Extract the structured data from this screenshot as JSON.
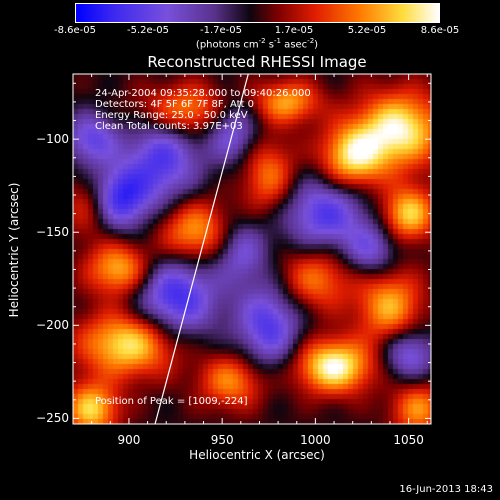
{
  "colorbar": {
    "tick_labels": [
      "-8.6e-05",
      "-5.2e-05",
      "-1.7e-05",
      "1.7e-05",
      "5.2e-05",
      "8.6e-05"
    ],
    "tick_values": [
      -8.6e-05,
      -5.2e-05,
      -1.7e-05,
      1.7e-05,
      5.2e-05,
      8.6e-05
    ],
    "range": [
      -8.6e-05,
      8.6e-05
    ],
    "units_main": "(photons cm",
    "units_exp1": "-2",
    "units_mid": " s",
    "units_exp2": "-1",
    "units_end": " asec",
    "units_exp3": "-2",
    "units_close": ")"
  },
  "chart_data": {
    "type": "heatmap",
    "title": "Reconstructed RHESSI Image",
    "xlabel": "Heliocentric X (arcsec)",
    "ylabel": "Heliocentric Y (arcsec)",
    "xlim": [
      870,
      1062
    ],
    "ylim": [
      -253,
      -65
    ],
    "x_ticks": [
      900,
      950,
      1000,
      1050
    ],
    "y_ticks": [
      -100,
      -150,
      -200,
      -250
    ],
    "colormap": "rainbow-hot (blue-purple-black-red-orange-yellow-white)",
    "annotations": [
      "24-Apr-2004 09:35:28.000 to 09:40:26.000",
      "Detectors: 4F 5F 6F 7F 8F, Att 0",
      "Energy Range: 25.0 - 50.0 keV",
      "Clean    Total counts: 3.97E+03"
    ],
    "peak_label": "Position of Peak = [1009,-224]",
    "peak": [
      1009,
      -224
    ],
    "limb_line": [
      [
        914,
        -253
      ],
      [
        964,
        -65
      ]
    ],
    "blobs": [
      {
        "x": 1010,
        "y": -222,
        "amp": 1.0,
        "sx": 14,
        "sy": 10
      },
      {
        "x": 1045,
        "y": -95,
        "amp": 0.95,
        "sx": 16,
        "sy": 14
      },
      {
        "x": 1020,
        "y": -110,
        "amp": 0.85,
        "sx": 12,
        "sy": 12
      },
      {
        "x": 1050,
        "y": -140,
        "amp": 0.8,
        "sx": 10,
        "sy": 10
      },
      {
        "x": 985,
        "y": -80,
        "amp": 0.65,
        "sx": 12,
        "sy": 8
      },
      {
        "x": 900,
        "y": -210,
        "amp": 0.9,
        "sx": 18,
        "sy": 12
      },
      {
        "x": 895,
        "y": -170,
        "amp": 0.75,
        "sx": 12,
        "sy": 10
      },
      {
        "x": 935,
        "y": -150,
        "amp": 0.7,
        "sx": 14,
        "sy": 12
      },
      {
        "x": 955,
        "y": -230,
        "amp": 0.6,
        "sx": 12,
        "sy": 10
      },
      {
        "x": 880,
        "y": -245,
        "amp": 0.8,
        "sx": 10,
        "sy": 10
      },
      {
        "x": 930,
        "y": -85,
        "amp": 0.7,
        "sx": 18,
        "sy": 10
      },
      {
        "x": 1000,
        "y": -175,
        "amp": 0.55,
        "sx": 14,
        "sy": 12
      },
      {
        "x": 1040,
        "y": -190,
        "amp": 0.7,
        "sx": 12,
        "sy": 14
      },
      {
        "x": 975,
        "y": -120,
        "amp": 0.55,
        "sx": 10,
        "sy": 14
      },
      {
        "x": 880,
        "y": -135,
        "amp": 0.55,
        "sx": 10,
        "sy": 12
      },
      {
        "x": 1055,
        "y": -245,
        "amp": 0.6,
        "sx": 10,
        "sy": 10
      },
      {
        "x": 893,
        "y": -132,
        "amp": -0.9,
        "sx": 12,
        "sy": 12
      },
      {
        "x": 918,
        "y": -110,
        "amp": -0.7,
        "sx": 14,
        "sy": 18
      },
      {
        "x": 925,
        "y": -185,
        "amp": -0.8,
        "sx": 16,
        "sy": 16
      },
      {
        "x": 1005,
        "y": -140,
        "amp": -0.7,
        "sx": 16,
        "sy": 14
      },
      {
        "x": 975,
        "y": -200,
        "amp": -0.7,
        "sx": 12,
        "sy": 16
      },
      {
        "x": 1050,
        "y": -215,
        "amp": -0.6,
        "sx": 10,
        "sy": 10
      },
      {
        "x": 955,
        "y": -95,
        "amp": -0.6,
        "sx": 10,
        "sy": 12
      },
      {
        "x": 880,
        "y": -100,
        "amp": -0.6,
        "sx": 10,
        "sy": 10
      },
      {
        "x": 1030,
        "y": -160,
        "amp": -0.5,
        "sx": 10,
        "sy": 10
      },
      {
        "x": 960,
        "y": -160,
        "amp": -0.5,
        "sx": 10,
        "sy": 12
      }
    ]
  },
  "footer": {
    "date": "16-Jun-2013 18:43"
  }
}
